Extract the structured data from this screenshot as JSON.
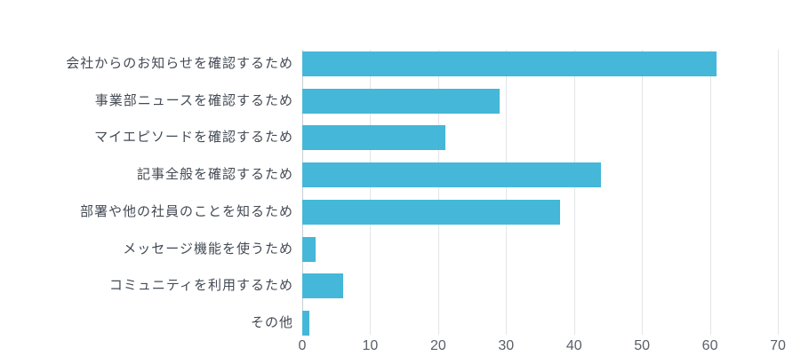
{
  "chart_data": {
    "type": "bar",
    "orientation": "horizontal",
    "title": "",
    "xlabel": "",
    "ylabel": "",
    "categories": [
      "会社からのお知らせを確認するため",
      "事業部ニュースを確認するため",
      "マイエピソードを確認するため",
      "記事全般を確認するため",
      "部署や他の社員のことを知るため",
      "メッセージ機能を使うため",
      "コミュニティを利用するため",
      "その他"
    ],
    "values": [
      61,
      29,
      21,
      44,
      38,
      2,
      6,
      1
    ],
    "xlim": [
      0,
      70
    ],
    "xticks": [
      0,
      10,
      20,
      30,
      40,
      50,
      60,
      70
    ],
    "grid": "vertical",
    "legend": "none",
    "colors": {
      "bar": "#45b7d8",
      "gridline": "#e3e5e8",
      "zero_line": "#c9cdd2",
      "category_label": "#434a54",
      "tick_label": "#5a6068",
      "background": "#ffffff"
    }
  }
}
